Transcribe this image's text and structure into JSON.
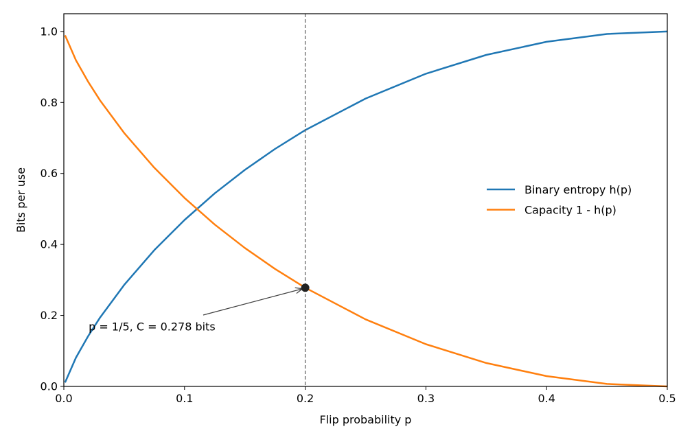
{
  "chart_data": {
    "type": "line",
    "title": "",
    "xlabel": "Flip probability p",
    "ylabel": "Bits per use",
    "xlim": [
      0.0,
      0.5
    ],
    "ylim": [
      0.0,
      1.05
    ],
    "xticks": [
      0.0,
      0.1,
      0.2,
      0.3,
      0.4,
      0.5
    ],
    "xtick_labels": [
      "0.0",
      "0.1",
      "0.2",
      "0.3",
      "0.4",
      "0.5"
    ],
    "yticks": [
      0.0,
      0.2,
      0.4,
      0.6,
      0.8,
      1.0
    ],
    "ytick_labels": [
      "0.0",
      "0.2",
      "0.4",
      "0.6",
      "0.8",
      "1.0"
    ],
    "grid": false,
    "legend_position": "center-right",
    "series": [
      {
        "name": "Binary entropy h(p)",
        "color": "#1f77b4",
        "x": [
          0.001,
          0.01,
          0.02,
          0.03,
          0.05,
          0.075,
          0.1,
          0.125,
          0.15,
          0.175,
          0.2,
          0.25,
          0.3,
          0.35,
          0.4,
          0.45,
          0.5
        ],
        "y": [
          0.011,
          0.081,
          0.141,
          0.194,
          0.286,
          0.384,
          0.469,
          0.544,
          0.61,
          0.669,
          0.722,
          0.811,
          0.881,
          0.934,
          0.971,
          0.993,
          1.0
        ]
      },
      {
        "name": "Capacity 1 - h(p)",
        "color": "#ff7f0e",
        "x": [
          0.001,
          0.01,
          0.02,
          0.03,
          0.05,
          0.075,
          0.1,
          0.125,
          0.15,
          0.175,
          0.2,
          0.25,
          0.3,
          0.35,
          0.4,
          0.45,
          0.5
        ],
        "y": [
          0.989,
          0.919,
          0.859,
          0.806,
          0.714,
          0.616,
          0.531,
          0.456,
          0.39,
          0.331,
          0.278,
          0.189,
          0.119,
          0.066,
          0.029,
          0.007,
          0.0
        ]
      }
    ],
    "vline": {
      "x": 0.2,
      "color": "#666666",
      "style": "dashed"
    },
    "marker": {
      "x": 0.2,
      "y": 0.278,
      "color": "#222222"
    },
    "annotation": {
      "text": "p = 1/5,  C = 0.278 bits",
      "text_x": 0.02,
      "text_y": 0.168,
      "arrow_to_x": 0.2,
      "arrow_to_y": 0.278
    }
  }
}
